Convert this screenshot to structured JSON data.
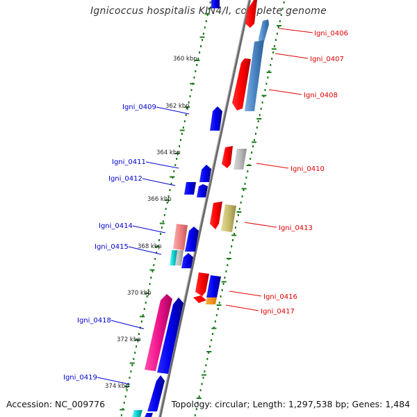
{
  "title": "Ignicoccus hospitalis KIN4/I, complete genome",
  "footer": {
    "accession": "Accession: NC_009776",
    "summary": "Topology: circular; Length: 1,297,538 bp; Genes: 1,484"
  },
  "colors": {
    "backbone": "#808080",
    "dots": "#1a7a1a",
    "forward_strand": "#e00000",
    "reverse_strand": "#0000cc",
    "ticks": "#1a7a1a"
  },
  "scale_labels": [
    "360 kbp",
    "362 kbp",
    "364 kbp",
    "366 kbp",
    "368 kbp",
    "370 kbp",
    "372 kbp",
    "374 kbp"
  ],
  "right_labels": [
    "Igni_0406",
    "Igni_0407",
    "Igni_0408",
    "Igni_0410",
    "Igni_0413",
    "Igni_0416",
    "Igni_0417"
  ],
  "left_labels": [
    "Igni_0409",
    "Igni_0411",
    "Igni_0412",
    "Igni_0414",
    "Igni_0415",
    "Igni_0418",
    "Igni_0419"
  ]
}
